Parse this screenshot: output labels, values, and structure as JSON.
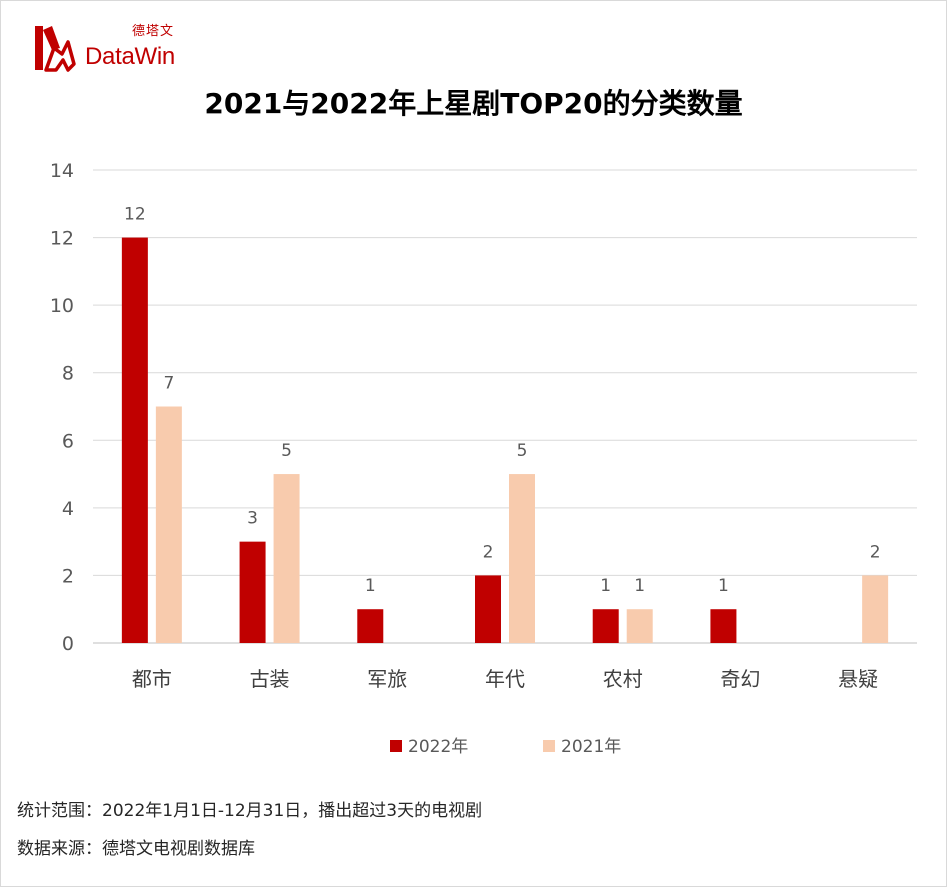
{
  "logo": {
    "brand_cn": "德塔文",
    "brand_en": "DataWin"
  },
  "footer": {
    "scope_note": "统计范围：2022年1月1日-12月31日，播出超过3天的电视剧",
    "source_note": "数据来源：德塔文电视剧数据库"
  },
  "chart_data": {
    "type": "bar",
    "title": "2021与2022年上星剧TOP20的分类数量",
    "categories": [
      "都市",
      "古装",
      "军旅",
      "年代",
      "农村",
      "奇幻",
      "悬疑"
    ],
    "series": [
      {
        "name": "2022年",
        "color": "#c00000",
        "values": [
          12,
          3,
          1,
          2,
          1,
          1,
          null
        ]
      },
      {
        "name": "2021年",
        "color": "#f8cbad",
        "values": [
          7,
          5,
          null,
          5,
          1,
          null,
          2
        ]
      }
    ],
    "ylim": [
      0,
      14
    ],
    "yticks": [
      0,
      2,
      4,
      6,
      8,
      10,
      12,
      14
    ],
    "grid": true,
    "legend": "bottom",
    "data_labels": true
  }
}
